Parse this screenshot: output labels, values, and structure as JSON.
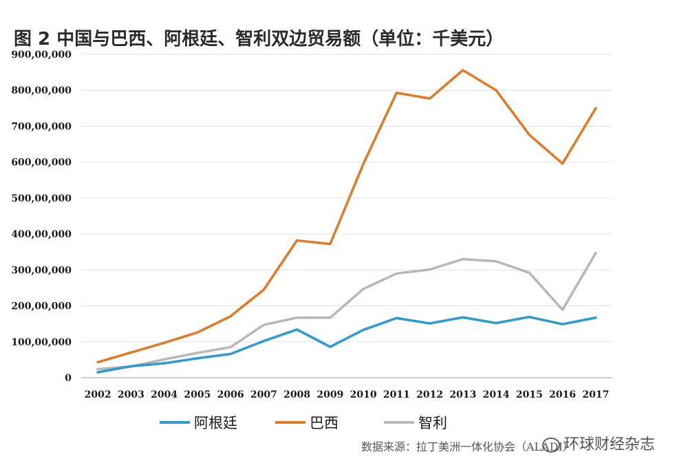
{
  "chart_data": {
    "type": "line",
    "title": "图 2   中国与巴西、阿根廷、智利双边贸易额（单位：千美元）",
    "x": [
      "2002",
      "2003",
      "2004",
      "2005",
      "2006",
      "2007",
      "2008",
      "2009",
      "2010",
      "2011",
      "2012",
      "2013",
      "2014",
      "2015",
      "2016",
      "2017"
    ],
    "y_ticks": [
      "0",
      "100,00,000",
      "200,00,000",
      "300,00,000",
      "400,00,000",
      "500,00,000",
      "600,00,000",
      "700,00,000",
      "800,00,000",
      "900,00,000"
    ],
    "ylim": [
      0,
      90000000
    ],
    "grid": true,
    "legend_position": "bottom",
    "series": [
      {
        "name": "阿根廷",
        "color": "#2f9bd0",
        "values": [
          1500000,
          3200000,
          4000000,
          5400000,
          6600000,
          10200000,
          13400000,
          8600000,
          13300000,
          16600000,
          15100000,
          16800000,
          15200000,
          16900000,
          14900000,
          16700000
        ]
      },
      {
        "name": "巴西",
        "color": "#e07b2a",
        "values": [
          4300000,
          7000000,
          9700000,
          12600000,
          17100000,
          24500000,
          38200000,
          37200000,
          59500000,
          79300000,
          77700000,
          85600000,
          80000000,
          67600000,
          59600000,
          75000000
        ]
      },
      {
        "name": "智利",
        "color": "#b8b8b8",
        "values": [
          2400000,
          3100000,
          5100000,
          6900000,
          8500000,
          14700000,
          16700000,
          16700000,
          24700000,
          29000000,
          30100000,
          33000000,
          32400000,
          29200000,
          18900000,
          34700000
        ]
      }
    ],
    "source": "数据来源：拉丁美洲一体化协会（ALADI）"
  },
  "watermark": "环球财经杂志"
}
